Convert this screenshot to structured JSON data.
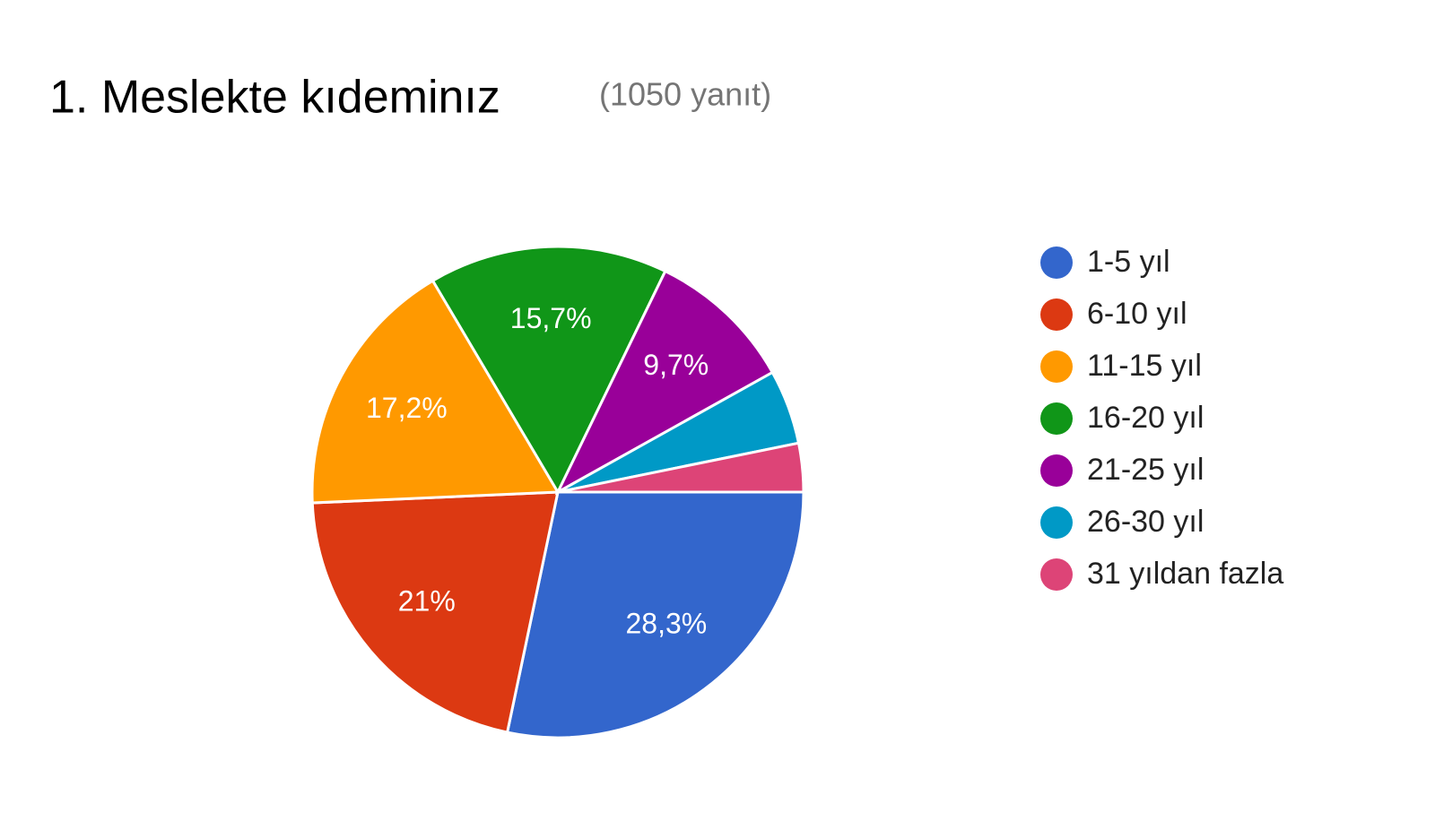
{
  "chart_data": {
    "type": "pie",
    "title": "1. Meslekte kıdeminız",
    "subtitle": "(1050 yanıt)",
    "categories": [
      "1-5 yıl",
      "6-10 yıl",
      "11-15 yıl",
      "16-20 yıl",
      "21-25 yıl",
      "26-30 yıl",
      "31 yıldan fazla"
    ],
    "values": [
      28.3,
      21,
      17.2,
      15.7,
      9.7,
      4.9,
      3.2
    ],
    "value_labels": [
      "28,3%",
      "21%",
      "17,2%",
      "15,7%",
      "9,7%",
      null,
      null
    ],
    "colors": [
      "#3366cc",
      "#dc3912",
      "#ff9900",
      "#109618",
      "#990099",
      "#0099c6",
      "#dd4477"
    ],
    "legend": "right"
  }
}
